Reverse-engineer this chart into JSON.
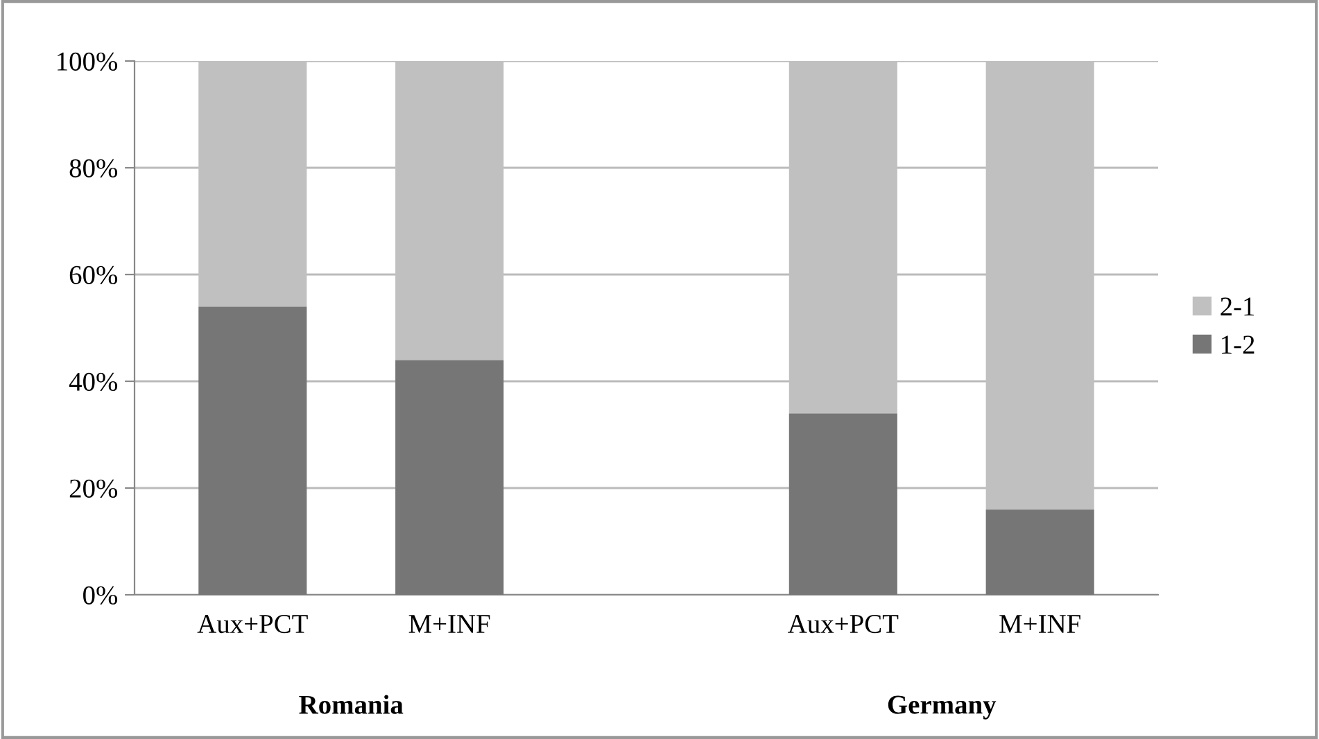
{
  "chart_data": {
    "type": "bar",
    "stacked": true,
    "categories": [
      "Aux+PCT",
      "M+INF",
      null,
      "Aux+PCT",
      "M+INF"
    ],
    "series": [
      {
        "name": "1-2",
        "color": "#767676",
        "values": [
          54,
          44,
          null,
          34,
          16
        ]
      },
      {
        "name": "2-1",
        "color": "#c0c0c0",
        "values": [
          46,
          56,
          null,
          66,
          84
        ]
      }
    ],
    "annotations": [
      "Romania",
      "Germany"
    ],
    "ylim": [
      0,
      100
    ],
    "yticks": [
      {
        "value": 0,
        "label": "0%"
      },
      {
        "value": 20,
        "label": "20%"
      },
      {
        "value": 40,
        "label": "40%"
      },
      {
        "value": 60,
        "label": "60%"
      },
      {
        "value": 80,
        "label": "80%"
      },
      {
        "value": 100,
        "label": "100%"
      }
    ],
    "grid": "y",
    "legend": "right"
  }
}
